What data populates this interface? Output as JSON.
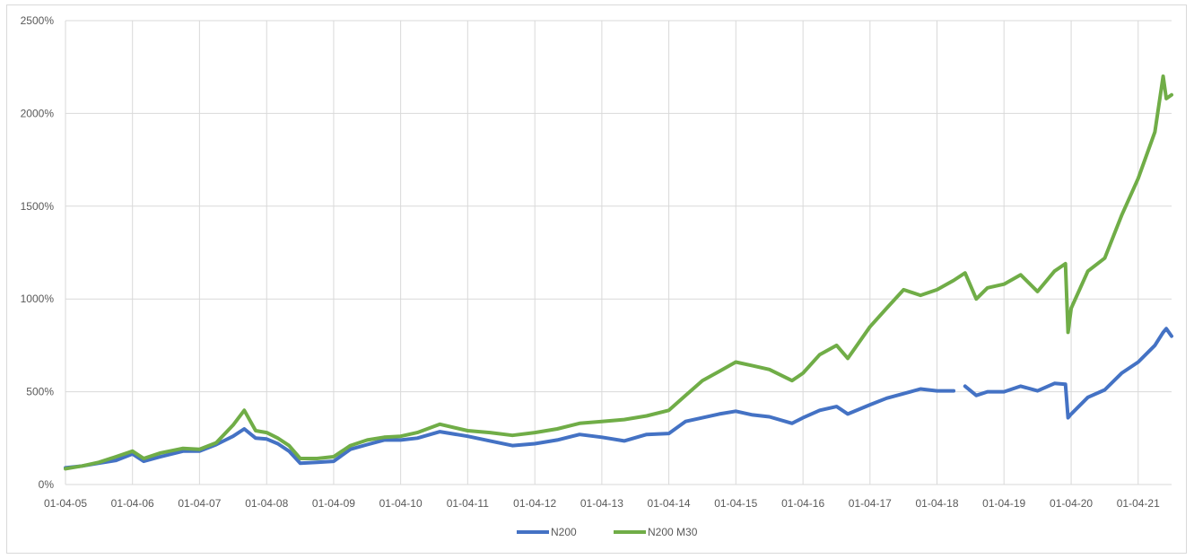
{
  "chart_data": {
    "type": "line",
    "title": "",
    "xlabel": "",
    "ylabel": "",
    "ylim": [
      0,
      2500
    ],
    "yticks": [
      0,
      500,
      1000,
      1500,
      2000,
      2500
    ],
    "ytick_labels": [
      "0%",
      "500%",
      "1000%",
      "1500%",
      "2000%",
      "2500%"
    ],
    "xlim": [
      "01-04-05",
      "30-09-21"
    ],
    "xtick_labels": [
      "01-04-05",
      "01-04-06",
      "01-04-07",
      "01-04-08",
      "01-04-09",
      "01-04-10",
      "01-04-11",
      "01-04-12",
      "01-04-13",
      "01-04-14",
      "01-04-15",
      "01-04-16",
      "01-04-17",
      "01-04-18",
      "01-04-19",
      "01-04-20",
      "01-04-21"
    ],
    "grid": true,
    "legend_position": "bottom",
    "series": [
      {
        "name": "N200",
        "color": "#4472c4",
        "points": [
          [
            "01-04-05",
            90
          ],
          [
            "01-07-05",
            100
          ],
          [
            "01-10-05",
            115
          ],
          [
            "01-01-06",
            130
          ],
          [
            "01-04-06",
            165
          ],
          [
            "01-06-06",
            125
          ],
          [
            "01-09-06",
            150
          ],
          [
            "01-01-07",
            180
          ],
          [
            "01-04-07",
            180
          ],
          [
            "01-07-07",
            215
          ],
          [
            "01-10-07",
            260
          ],
          [
            "01-12-07",
            300
          ],
          [
            "01-02-08",
            250
          ],
          [
            "01-04-08",
            245
          ],
          [
            "01-06-08",
            220
          ],
          [
            "01-08-08",
            180
          ],
          [
            "01-10-08",
            115
          ],
          [
            "01-01-09",
            120
          ],
          [
            "01-04-09",
            125
          ],
          [
            "01-07-09",
            190
          ],
          [
            "01-10-09",
            215
          ],
          [
            "01-01-10",
            240
          ],
          [
            "01-04-10",
            240
          ],
          [
            "01-07-10",
            250
          ],
          [
            "01-11-10",
            285
          ],
          [
            "01-04-11",
            260
          ],
          [
            "01-08-11",
            235
          ],
          [
            "01-12-11",
            210
          ],
          [
            "01-04-12",
            220
          ],
          [
            "01-08-12",
            240
          ],
          [
            "01-12-12",
            270
          ],
          [
            "01-04-13",
            255
          ],
          [
            "01-08-13",
            235
          ],
          [
            "01-12-13",
            270
          ],
          [
            "01-04-14",
            275
          ],
          [
            "01-07-14",
            340
          ],
          [
            "01-10-14",
            360
          ],
          [
            "01-01-15",
            380
          ],
          [
            "01-04-15",
            395
          ],
          [
            "01-07-15",
            375
          ],
          [
            "01-10-15",
            365
          ],
          [
            "01-02-16",
            330
          ],
          [
            "01-04-16",
            360
          ],
          [
            "01-07-16",
            400
          ],
          [
            "01-10-16",
            420
          ],
          [
            "01-12-16",
            380
          ],
          [
            "01-04-17",
            430
          ],
          [
            "01-07-17",
            465
          ],
          [
            "01-10-17",
            490
          ],
          [
            "01-01-18",
            515
          ],
          [
            "01-04-18",
            505
          ],
          [
            "01-07-18",
            505
          ]
        ]
      },
      {
        "name": "N200",
        "color": "#4472c4",
        "points": [
          [
            "01-09-18",
            530
          ],
          [
            "01-11-18",
            480
          ],
          [
            "01-01-19",
            500
          ],
          [
            "01-04-19",
            500
          ],
          [
            "01-07-19",
            530
          ],
          [
            "01-10-19",
            505
          ],
          [
            "01-01-20",
            545
          ],
          [
            "01-03-20",
            540
          ],
          [
            "15-03-20",
            360
          ],
          [
            "01-04-20",
            380
          ],
          [
            "01-07-20",
            470
          ],
          [
            "01-10-20",
            510
          ],
          [
            "01-01-21",
            600
          ],
          [
            "01-04-21",
            660
          ],
          [
            "01-07-21",
            750
          ],
          [
            "15-08-21",
            820
          ],
          [
            "01-09-21",
            840
          ],
          [
            "30-09-21",
            800
          ]
        ]
      },
      {
        "name": "N200 M30",
        "color": "#70ad47",
        "points": [
          [
            "01-04-05",
            85
          ],
          [
            "01-07-05",
            100
          ],
          [
            "01-10-05",
            120
          ],
          [
            "01-01-06",
            150
          ],
          [
            "01-04-06",
            180
          ],
          [
            "01-06-06",
            140
          ],
          [
            "01-09-06",
            170
          ],
          [
            "01-01-07",
            195
          ],
          [
            "01-04-07",
            190
          ],
          [
            "01-07-07",
            225
          ],
          [
            "01-10-07",
            320
          ],
          [
            "01-12-07",
            400
          ],
          [
            "01-02-08",
            290
          ],
          [
            "01-04-08",
            280
          ],
          [
            "01-06-08",
            250
          ],
          [
            "01-08-08",
            210
          ],
          [
            "01-10-08",
            140
          ],
          [
            "01-01-09",
            140
          ],
          [
            "01-04-09",
            150
          ],
          [
            "01-07-09",
            210
          ],
          [
            "01-10-09",
            240
          ],
          [
            "01-01-10",
            255
          ],
          [
            "01-04-10",
            260
          ],
          [
            "01-07-10",
            280
          ],
          [
            "01-11-10",
            325
          ],
          [
            "01-04-11",
            290
          ],
          [
            "01-08-11",
            280
          ],
          [
            "01-12-11",
            265
          ],
          [
            "01-04-12",
            280
          ],
          [
            "01-08-12",
            300
          ],
          [
            "01-12-12",
            330
          ],
          [
            "01-04-13",
            340
          ],
          [
            "01-08-13",
            350
          ],
          [
            "01-12-13",
            370
          ],
          [
            "01-04-14",
            400
          ],
          [
            "01-07-14",
            480
          ],
          [
            "01-10-14",
            560
          ],
          [
            "01-01-15",
            610
          ],
          [
            "01-04-15",
            660
          ],
          [
            "01-07-15",
            640
          ],
          [
            "01-10-15",
            620
          ],
          [
            "01-02-16",
            560
          ],
          [
            "01-04-16",
            600
          ],
          [
            "01-07-16",
            700
          ],
          [
            "01-10-16",
            750
          ],
          [
            "01-12-16",
            680
          ],
          [
            "01-04-17",
            850
          ],
          [
            "01-07-17",
            950
          ],
          [
            "01-10-17",
            1050
          ],
          [
            "01-01-18",
            1020
          ],
          [
            "01-04-18",
            1050
          ],
          [
            "01-07-18",
            1100
          ],
          [
            "01-09-18",
            1140
          ],
          [
            "01-11-18",
            1000
          ],
          [
            "01-01-19",
            1060
          ],
          [
            "01-04-19",
            1080
          ],
          [
            "01-07-19",
            1130
          ],
          [
            "01-10-19",
            1040
          ],
          [
            "01-01-20",
            1150
          ],
          [
            "01-03-20",
            1190
          ],
          [
            "15-03-20",
            820
          ],
          [
            "01-04-20",
            950
          ],
          [
            "01-07-20",
            1150
          ],
          [
            "01-10-20",
            1220
          ],
          [
            "01-01-21",
            1450
          ],
          [
            "01-04-21",
            1650
          ],
          [
            "01-07-21",
            1900
          ],
          [
            "15-08-21",
            2200
          ],
          [
            "01-09-21",
            2080
          ],
          [
            "30-09-21",
            2100
          ]
        ]
      }
    ],
    "legend": [
      {
        "name": "N200",
        "color": "#4472c4"
      },
      {
        "name": "N200 M30",
        "color": "#70ad47"
      }
    ]
  }
}
